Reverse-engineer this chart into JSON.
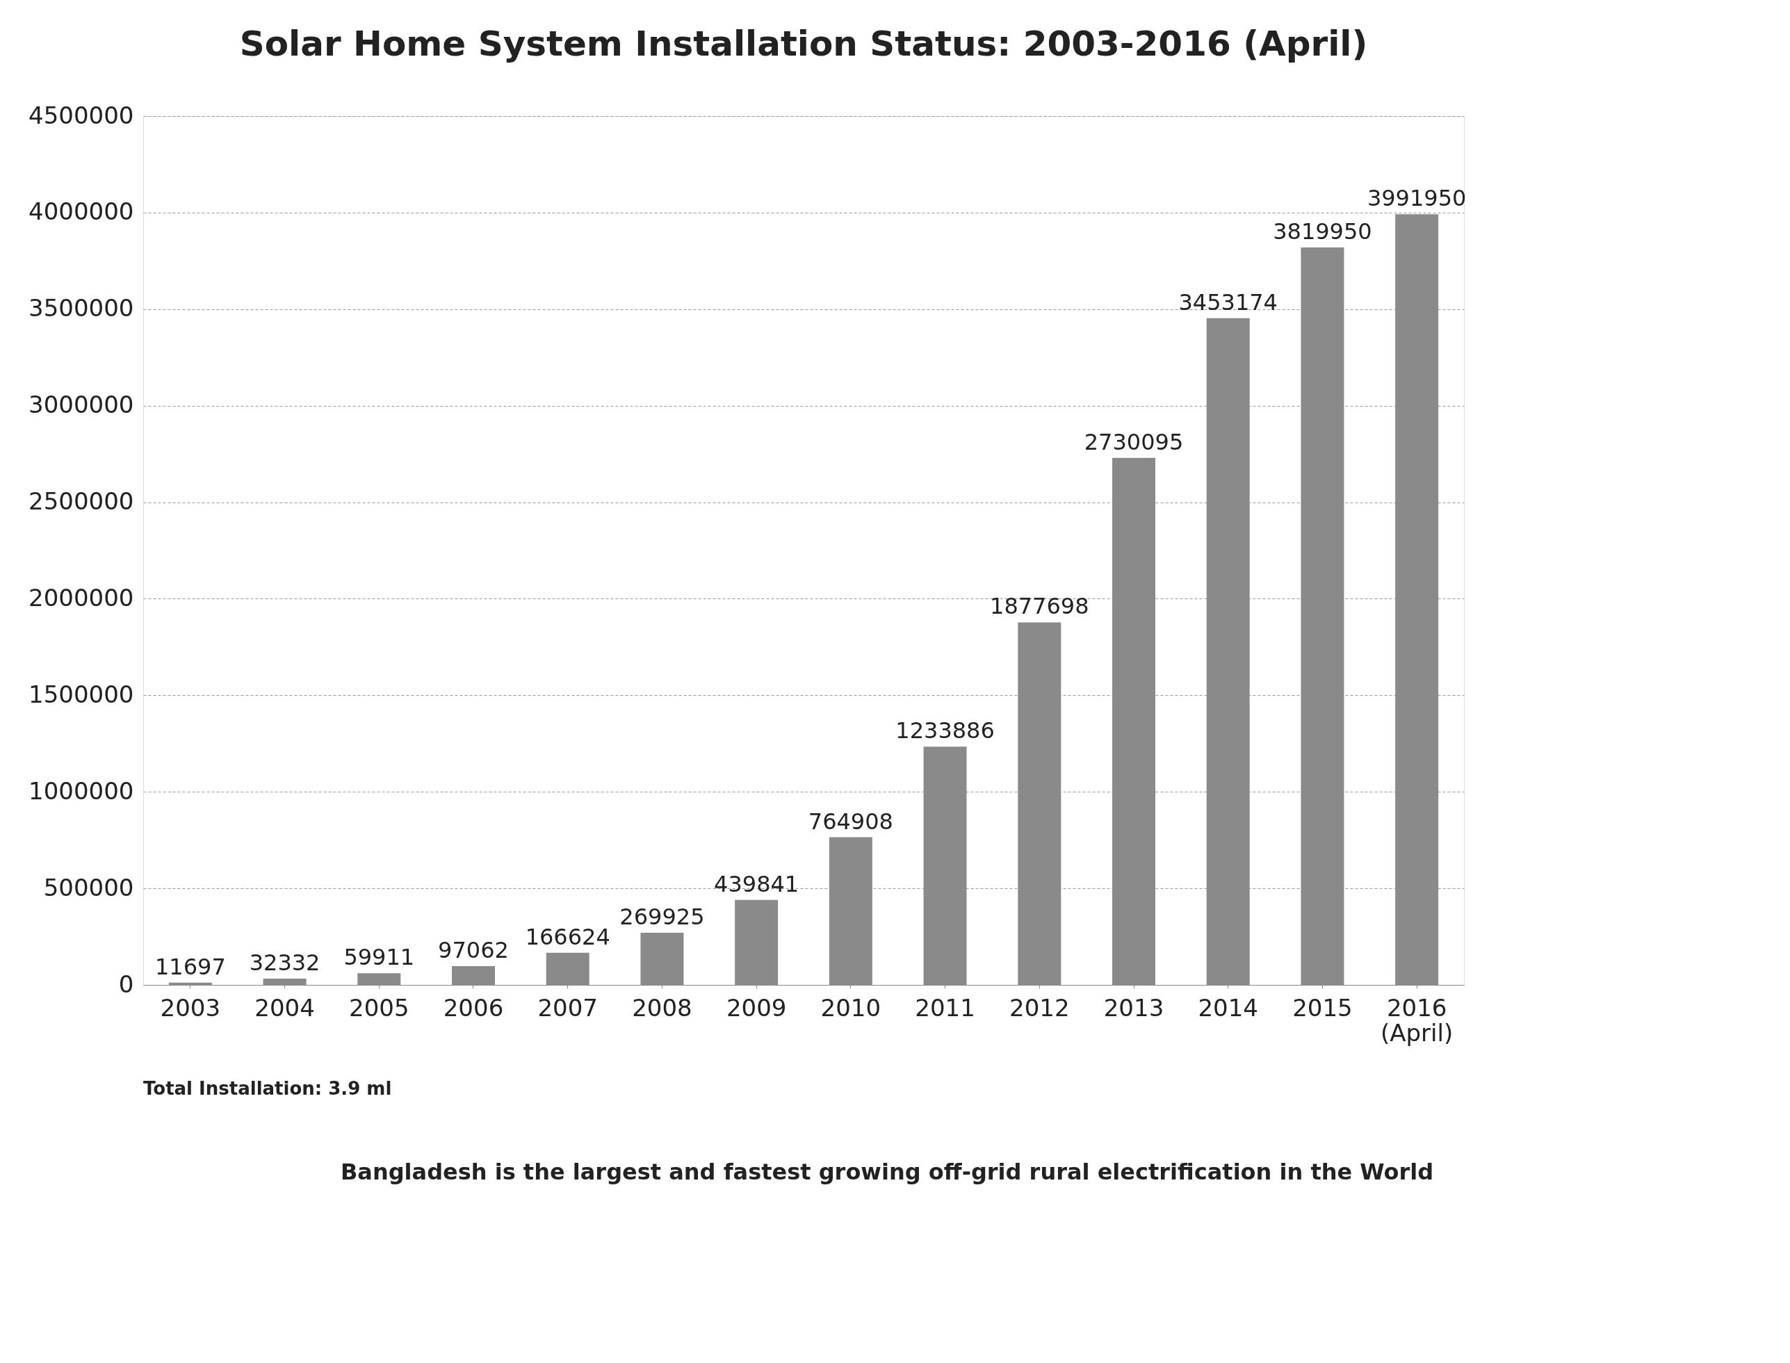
{
  "chart_data": {
    "type": "bar",
    "title": "Solar Home System Installation Status: 2003-2016 (April)",
    "categories": [
      "2003",
      "2004",
      "2005",
      "2006",
      "2007",
      "2008",
      "2009",
      "2010",
      "2011",
      "2012",
      "2013",
      "2014",
      "2015",
      "2016 (April)"
    ],
    "values": [
      11697,
      32332,
      59911,
      97062,
      166624,
      269925,
      439841,
      764908,
      1233886,
      1877698,
      2730095,
      3453174,
      3819950,
      3991950
    ],
    "color": "#8a8a8a",
    "data_labels": true,
    "ylim": [
      0,
      4500000
    ],
    "yticks": [
      0,
      500000,
      1000000,
      1500000,
      2000000,
      2500000,
      3000000,
      3500000,
      4000000,
      4500000
    ],
    "grid": "y",
    "annotations": [
      "Total Installation: 3.9 ml",
      "Bangladesh is the largest and fastest growing off-grid rural electrification in the World"
    ]
  }
}
